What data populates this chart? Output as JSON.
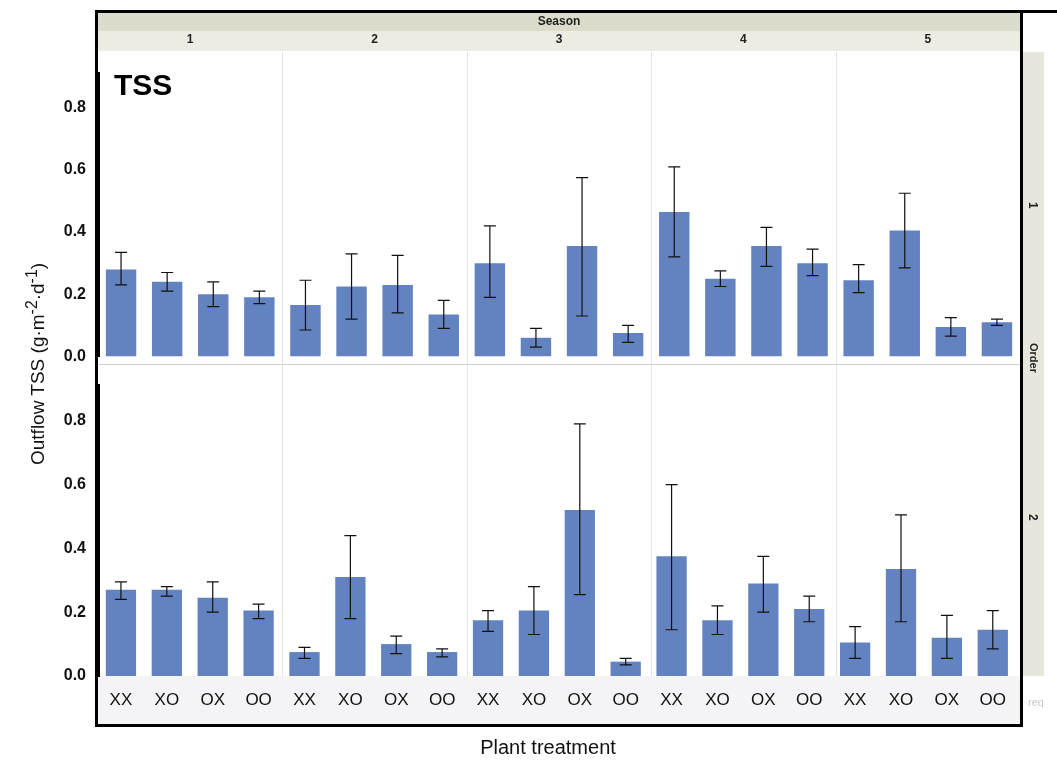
{
  "chart_data": [
    {
      "type": "bar",
      "title": "TSS",
      "ylabel": "Outflow TSS (g·m$^{-2}$·d$^{-1}$)",
      "y2label": "1",
      "annotations": [
        "Season",
        "1",
        "2",
        "3",
        "4",
        "5",
        "Order"
      ],
      "categories": [
        null,
        null,
        null,
        null,
        null,
        null,
        null,
        null,
        null,
        null,
        null,
        null,
        null,
        null,
        null,
        null,
        null,
        null,
        null,
        null
      ],
      "values": [
        0.28,
        0.24,
        0.2,
        0.19,
        0.165,
        0.225,
        0.23,
        0.135,
        0.3,
        0.06,
        0.355,
        0.075,
        0.465,
        0.25,
        0.355,
        0.3,
        0.245,
        0.405,
        0.095,
        0.11
      ],
      "errors": [
        [
          0.23,
          0.335
        ],
        [
          0.21,
          0.27
        ],
        [
          0.16,
          0.24
        ],
        [
          0.17,
          0.21
        ],
        [
          0.085,
          0.245
        ],
        [
          0.12,
          0.33
        ],
        [
          0.14,
          0.325
        ],
        [
          0.09,
          0.18
        ],
        [
          0.19,
          0.42
        ],
        [
          0.03,
          0.09
        ],
        [
          0.13,
          0.575
        ],
        [
          0.045,
          0.1
        ],
        [
          0.32,
          0.61
        ],
        [
          0.225,
          0.275
        ],
        [
          0.29,
          0.415
        ],
        [
          0.26,
          0.345
        ],
        [
          0.205,
          0.295
        ],
        [
          0.285,
          0.525
        ],
        [
          0.065,
          0.125
        ],
        [
          0.1,
          0.12
        ]
      ],
      "color": "#6383c0",
      "ylim": [
        0,
        0.91
      ],
      "yticks": [
        {
          "value": 0,
          "label": "0.0"
        },
        0.2,
        0.4,
        0.6,
        0.8
      ],
      "tick_labels": "y"
    },
    {
      "type": "bar",
      "xlabel": "Plant treatment",
      "y2label": "2",
      "annotations": [
        "req"
      ],
      "categories": [
        "XX",
        "XO",
        "OX",
        "OO",
        "XX",
        "XO",
        "OX",
        "OO",
        "XX",
        "XO",
        "OX",
        "OO",
        "XX",
        "XO",
        "OX",
        "OO",
        "XX",
        "XO",
        "OX",
        "OO"
      ],
      "values": [
        0.27,
        0.27,
        0.245,
        0.205,
        0.075,
        0.31,
        0.1,
        0.075,
        0.175,
        0.205,
        0.52,
        0.045,
        0.375,
        0.175,
        0.29,
        0.21,
        0.105,
        0.335,
        0.12,
        0.145
      ],
      "errors": [
        [
          0.24,
          0.295
        ],
        [
          0.25,
          0.28
        ],
        [
          0.2,
          0.295
        ],
        [
          0.18,
          0.225
        ],
        [
          0.055,
          0.09
        ],
        [
          0.18,
          0.44
        ],
        [
          0.07,
          0.125
        ],
        [
          0.06,
          0.085
        ],
        [
          0.14,
          0.205
        ],
        [
          0.13,
          0.28
        ],
        [
          0.255,
          0.79
        ],
        [
          0.035,
          0.055
        ],
        [
          0.145,
          0.6
        ],
        [
          0.13,
          0.22
        ],
        [
          0.2,
          0.375
        ],
        [
          0.17,
          0.25
        ],
        [
          0.055,
          0.155
        ],
        [
          0.17,
          0.505
        ],
        [
          0.055,
          0.19
        ],
        [
          0.085,
          0.205
        ]
      ],
      "color": "#6383c0",
      "ylim": [
        0,
        0.91
      ],
      "yticks": [
        {
          "value": 0,
          "label": "0.0"
        },
        0.2,
        0.4,
        0.6,
        0.8
      ]
    }
  ]
}
